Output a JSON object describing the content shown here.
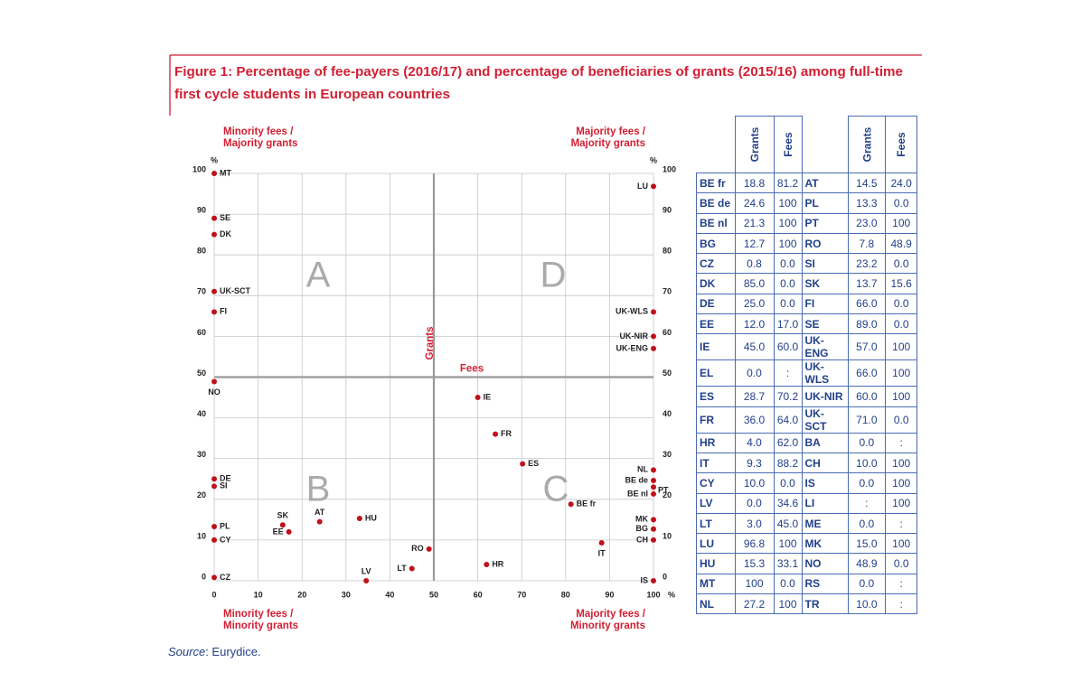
{
  "chart_data": {
    "type": "scatter",
    "title_lines": [
      "Figure 1: Percentage of fee-payers (2016/17) and percentage of beneficiaries of grants (2015/16) among full-time",
      "first cycle students in European countries"
    ],
    "x_label": "Fees",
    "y_label": "Grants",
    "x_unit": "%",
    "y_unit": "%",
    "xlim": [
      0,
      100
    ],
    "ylim": [
      0,
      100
    ],
    "xticks": [
      0,
      10,
      20,
      30,
      40,
      50,
      60,
      70,
      80,
      90,
      100
    ],
    "yticks": [
      0,
      10,
      20,
      30,
      40,
      50,
      60,
      70,
      80,
      90,
      100
    ],
    "grid": true,
    "color": "#c0101a",
    "quadrant_split": {
      "x": 50,
      "y": 50
    },
    "quadrants": [
      {
        "letter": "A",
        "lines": [
          "Minority fees /",
          "Majority grants"
        ]
      },
      {
        "letter": "D",
        "lines": [
          "Majority fees /",
          "Majority grants"
        ]
      },
      {
        "letter": "B",
        "lines": [
          "Minority fees /",
          "Minority grants"
        ]
      },
      {
        "letter": "C",
        "lines": [
          "Majority fees /",
          "Minority grants"
        ]
      }
    ],
    "points": [
      {
        "label": "MT",
        "x": 0,
        "y": 100
      },
      {
        "label": "SE",
        "x": 0,
        "y": 89
      },
      {
        "label": "DK",
        "x": 0,
        "y": 85
      },
      {
        "label": "UK-SCT",
        "x": 0,
        "y": 71
      },
      {
        "label": "FI",
        "x": 0,
        "y": 66
      },
      {
        "label": "NO",
        "x": 0,
        "y": 48.9
      },
      {
        "label": "DE",
        "x": 0,
        "y": 25
      },
      {
        "label": "SI",
        "x": 0,
        "y": 23.2
      },
      {
        "label": "PL",
        "x": 0,
        "y": 13.3
      },
      {
        "label": "CY",
        "x": 0,
        "y": 10
      },
      {
        "label": "CZ",
        "x": 0,
        "y": 0.8
      },
      {
        "label": "SK",
        "x": 15.6,
        "y": 13.7
      },
      {
        "label": "EE",
        "x": 17,
        "y": 12
      },
      {
        "label": "AT",
        "x": 24,
        "y": 14.5
      },
      {
        "label": "HU",
        "x": 33.1,
        "y": 15.3
      },
      {
        "label": "LV",
        "x": 34.6,
        "y": 0
      },
      {
        "label": "LT",
        "x": 45,
        "y": 3
      },
      {
        "label": "RO",
        "x": 48.9,
        "y": 7.8
      },
      {
        "label": "IE",
        "x": 60,
        "y": 45
      },
      {
        "label": "FR",
        "x": 64,
        "y": 36
      },
      {
        "label": "ES",
        "x": 70.2,
        "y": 28.7
      },
      {
        "label": "HR",
        "x": 62,
        "y": 4
      },
      {
        "label": "BE fr",
        "x": 81.2,
        "y": 18.8
      },
      {
        "label": "IT",
        "x": 88.2,
        "y": 9.3
      },
      {
        "label": "LU",
        "x": 100,
        "y": 96.8
      },
      {
        "label": "UK-WLS",
        "x": 100,
        "y": 66
      },
      {
        "label": "UK-NIR",
        "x": 100,
        "y": 60
      },
      {
        "label": "UK-ENG",
        "x": 100,
        "y": 57
      },
      {
        "label": "NL",
        "x": 100,
        "y": 27.2
      },
      {
        "label": "BE de",
        "x": 100,
        "y": 24.6
      },
      {
        "label": "PT",
        "x": 100,
        "y": 23
      },
      {
        "label": "BE nl",
        "x": 100,
        "y": 21.3
      },
      {
        "label": "MK",
        "x": 100,
        "y": 15
      },
      {
        "label": "BG",
        "x": 100,
        "y": 12.7
      },
      {
        "label": "CH",
        "x": 100,
        "y": 10
      },
      {
        "label": "IS",
        "x": 100,
        "y": 0
      }
    ]
  },
  "table": {
    "header": [
      "Grants",
      "Fees"
    ],
    "rows": [
      [
        "BE fr",
        "18.8",
        "81.2",
        "AT",
        "14.5",
        "24.0"
      ],
      [
        "BE de",
        "24.6",
        "100",
        "PL",
        "13.3",
        "0.0"
      ],
      [
        "BE nl",
        "21.3",
        "100",
        "PT",
        "23.0",
        "100"
      ],
      [
        "BG",
        "12.7",
        "100",
        "RO",
        "7.8",
        "48.9"
      ],
      [
        "CZ",
        "0.8",
        "0.0",
        "SI",
        "23.2",
        "0.0"
      ],
      [
        "DK",
        "85.0",
        "0.0",
        "SK",
        "13.7",
        "15.6"
      ],
      [
        "DE",
        "25.0",
        "0.0",
        "FI",
        "66.0",
        "0.0"
      ],
      [
        "EE",
        "12.0",
        "17.0",
        "SE",
        "89.0",
        "0.0"
      ],
      [
        "IE",
        "45.0",
        "60.0",
        "UK-ENG",
        "57.0",
        "100"
      ],
      [
        "EL",
        "0.0",
        ":",
        "UK-WLS",
        "66.0",
        "100"
      ],
      [
        "ES",
        "28.7",
        "70.2",
        "UK-NIR",
        "60.0",
        "100"
      ],
      [
        "FR",
        "36.0",
        "64.0",
        "UK-SCT",
        "71.0",
        "0.0"
      ],
      [
        "HR",
        "4.0",
        "62.0",
        "BA",
        "0.0",
        ":"
      ],
      [
        "IT",
        "9.3",
        "88.2",
        "CH",
        "10.0",
        "100"
      ],
      [
        "CY",
        "10.0",
        "0.0",
        "IS",
        "0.0",
        "100"
      ],
      [
        "LV",
        "0.0",
        "34.6",
        "LI",
        ":",
        "100"
      ],
      [
        "LT",
        "3.0",
        "45.0",
        "ME",
        "0.0",
        ":"
      ],
      [
        "LU",
        "96.8",
        "100",
        "MK",
        "15.0",
        "100"
      ],
      [
        "HU",
        "15.3",
        "33.1",
        "NO",
        "48.9",
        "0.0"
      ],
      [
        "MT",
        "100",
        "0.0",
        "RS",
        "0.0",
        ":"
      ],
      [
        "NL",
        "27.2",
        "100",
        "TR",
        "10.0",
        ":"
      ]
    ]
  },
  "source": {
    "label": "Source",
    "text": ": Eurydice."
  }
}
